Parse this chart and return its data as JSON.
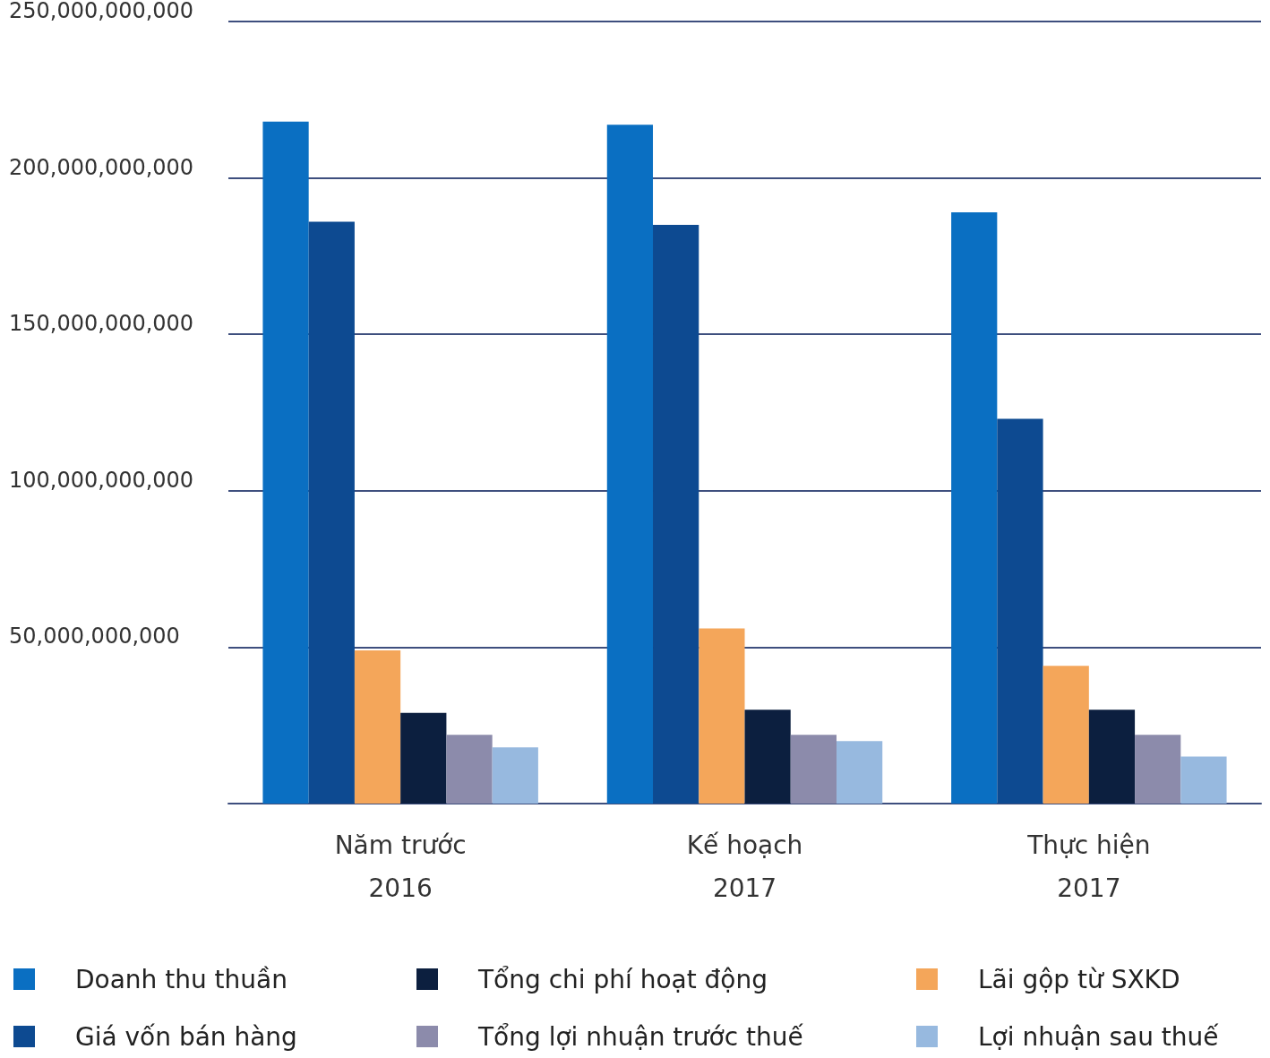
{
  "chart_data": {
    "type": "bar",
    "categories": [
      "Năm trước\n2016",
      "Kế hoạch\n2017",
      "Thực hiện\n2017"
    ],
    "series": [
      {
        "name": "Doanh thu thuần",
        "color": "#0a6fc2",
        "values": [
          218000000000,
          217000000000,
          189000000000
        ]
      },
      {
        "name": "Giá vốn bán hàng",
        "color": "#0d4a91",
        "values": [
          186000000000,
          185000000000,
          123000000000
        ]
      },
      {
        "name": "Lãi gộp từ SXKD",
        "color": "#f4a65a",
        "values": [
          49000000000,
          56000000000,
          44000000000
        ]
      },
      {
        "name": "Tổng chi phí hoạt động",
        "color": "#0c1f3f",
        "values": [
          29000000000,
          30000000000,
          30000000000
        ]
      },
      {
        "name": "Tổng lợi nhuận trước thuế",
        "color": "#8c8bab",
        "values": [
          22000000000,
          22000000000,
          22000000000
        ]
      },
      {
        "name": "Lợi nhuận sau thuế",
        "color": "#97b9df",
        "values": [
          18000000000,
          20000000000,
          15000000000
        ]
      }
    ],
    "ylim": [
      0,
      250000000000
    ],
    "yticks": [
      {
        "value": 0,
        "label": null
      },
      {
        "value": 50000000000,
        "label": "50,000,000,000"
      },
      {
        "value": 100000000000,
        "label": "100,000,000,000"
      },
      {
        "value": 150000000000,
        "label": "150,000,000,000"
      },
      {
        "value": 200000000000,
        "label": "200,000,000,000"
      },
      {
        "value": 250000000000,
        "label": "250,000,000,000"
      }
    ],
    "grid": "y",
    "legend": "bottom"
  }
}
